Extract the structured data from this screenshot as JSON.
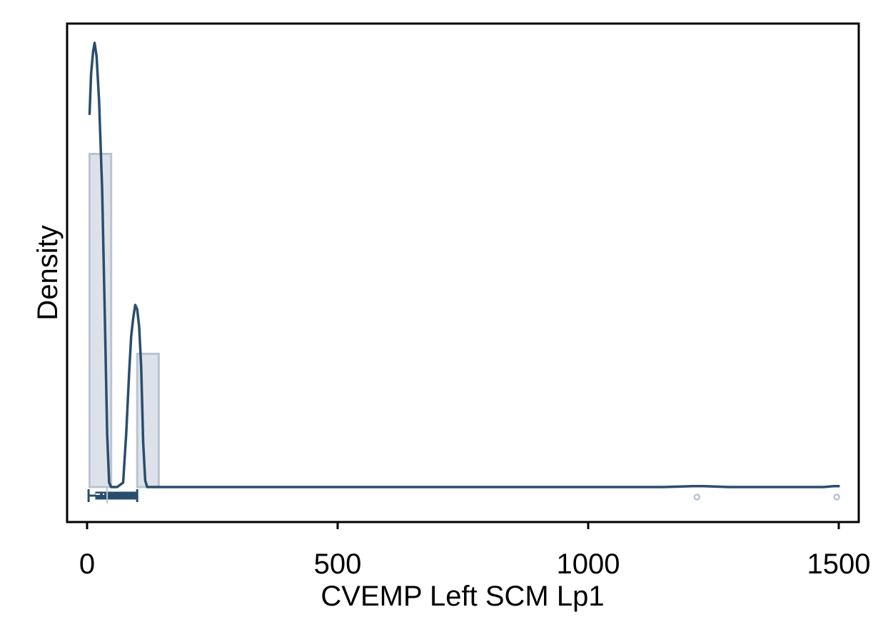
{
  "chart_data": {
    "type": "histogram-density",
    "title": "",
    "xlabel": "CVEMP Left SCM Lp1",
    "ylabel": "Density",
    "xlim": [
      -40,
      1540
    ],
    "x_ticks": [
      0,
      500,
      1000,
      1500
    ],
    "x_tick_labels": [
      "0",
      "500",
      "1000",
      "1500"
    ],
    "y_ticks_shown": false,
    "grid": false,
    "legend": "none",
    "colors": {
      "line": "#2a4d6e",
      "bar_fill": "#dde2ea",
      "bar_stroke": "#b9c4d2",
      "outlier": "#b9c4d2",
      "frame": "#000000"
    },
    "density_scale_units": "relative (axis unlabeled; max density = 1.0)",
    "histogram_bins": [
      {
        "x0": 5,
        "x1": 48,
        "height": 0.75
      },
      {
        "x0": 100,
        "x1": 143,
        "height": 0.3
      }
    ],
    "density_curve": [
      [
        5,
        0.84
      ],
      [
        8,
        0.93
      ],
      [
        12,
        0.98
      ],
      [
        15,
        1.0
      ],
      [
        19,
        0.97
      ],
      [
        24,
        0.87
      ],
      [
        30,
        0.67
      ],
      [
        36,
        0.35
      ],
      [
        40,
        0.12
      ],
      [
        44,
        0.01
      ],
      [
        48,
        0.0
      ],
      [
        60,
        0.0
      ],
      [
        72,
        0.01
      ],
      [
        78,
        0.12
      ],
      [
        84,
        0.26
      ],
      [
        88,
        0.34
      ],
      [
        92,
        0.38
      ],
      [
        96,
        0.41
      ],
      [
        100,
        0.4
      ],
      [
        104,
        0.36
      ],
      [
        108,
        0.27
      ],
      [
        112,
        0.1
      ],
      [
        116,
        0.015
      ],
      [
        120,
        0.0
      ],
      [
        300,
        0.0
      ],
      [
        600,
        0.0
      ],
      [
        900,
        0.0
      ],
      [
        1150,
        0.0
      ],
      [
        1210,
        0.002
      ],
      [
        1230,
        0.002
      ],
      [
        1280,
        0.0
      ],
      [
        1400,
        0.0
      ],
      [
        1470,
        0.0
      ],
      [
        1490,
        0.002
      ],
      [
        1500,
        0.002
      ]
    ],
    "boxplot": {
      "min": 3,
      "q1": 17,
      "median": 40,
      "q3": 100,
      "whisker_high": 100
    },
    "outliers": [
      1217,
      1496
    ]
  }
}
